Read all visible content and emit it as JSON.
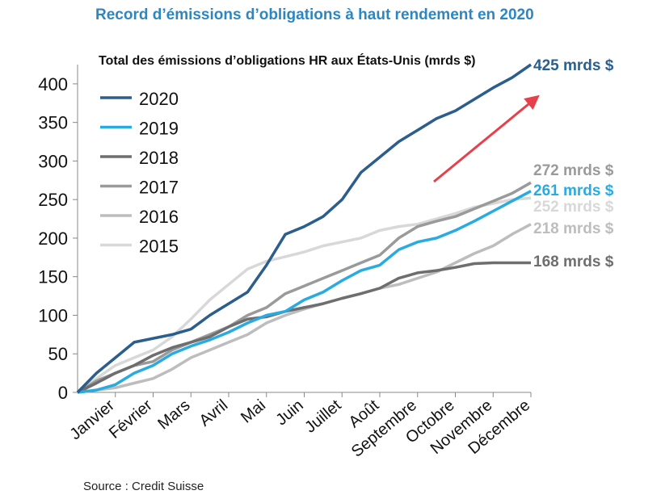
{
  "title": "Record d’émissions d’obligations à haut rendement en 2020",
  "source": "Source : Credit Suisse",
  "chart_data": {
    "type": "line",
    "title": "Record d’émissions d’obligations à haut rendement en 2020",
    "subtitle": "Total des émissions d’obligations HR aux États-Unis (mrds  $)",
    "xlabel": "",
    "ylabel": "",
    "ylim": [
      0,
      425
    ],
    "yticks": [
      0,
      50,
      100,
      150,
      200,
      250,
      300,
      350,
      400
    ],
    "categories": [
      "Janvier",
      "Février",
      "Mars",
      "Avril",
      "Mai",
      "Juin",
      "Juillet",
      "Août",
      "Septembre",
      "Octobre",
      "Novembre",
      "Décembre"
    ],
    "x_range": [
      0,
      12
    ],
    "arrow": "increasing trend toward 2020 end value",
    "series": [
      {
        "name": "2015",
        "color": "#d8d8d8",
        "end_label": "252 mrds $",
        "x": [
          0,
          0.5,
          1,
          1.5,
          2,
          2.5,
          3,
          3.5,
          4,
          4.5,
          5,
          5.5,
          6,
          6.5,
          7,
          7.5,
          8,
          8.5,
          9,
          9.5,
          10,
          10.5,
          11,
          11.5,
          12
        ],
        "values": [
          0,
          18,
          35,
          45,
          55,
          72,
          95,
          120,
          140,
          160,
          170,
          176,
          182,
          190,
          195,
          200,
          210,
          215,
          218,
          225,
          232,
          240,
          245,
          250,
          252
        ]
      },
      {
        "name": "2016",
        "color": "#bdbdbd",
        "end_label": "218 mrds $",
        "x": [
          0,
          0.5,
          1,
          1.5,
          2,
          2.5,
          3,
          3.5,
          4,
          4.5,
          5,
          5.5,
          6,
          6.5,
          7,
          7.5,
          8,
          8.5,
          9,
          9.5,
          10,
          10.5,
          11,
          11.5,
          12
        ],
        "values": [
          0,
          3,
          6,
          12,
          18,
          30,
          45,
          55,
          65,
          75,
          90,
          100,
          108,
          115,
          122,
          128,
          135,
          140,
          148,
          156,
          168,
          180,
          190,
          205,
          218
        ]
      },
      {
        "name": "2017",
        "color": "#9a9a9a",
        "end_label": "272 mrds $",
        "x": [
          0,
          0.5,
          1,
          1.5,
          2,
          2.5,
          3,
          3.5,
          4,
          4.5,
          5,
          5.5,
          6,
          6.5,
          7,
          7.5,
          8,
          8.5,
          9,
          9.5,
          10,
          10.5,
          11,
          11.5,
          12
        ],
        "values": [
          0,
          15,
          25,
          35,
          40,
          55,
          65,
          75,
          85,
          100,
          110,
          128,
          138,
          148,
          158,
          168,
          178,
          200,
          215,
          222,
          228,
          238,
          248,
          258,
          272
        ]
      },
      {
        "name": "2018",
        "color": "#6e6e6e",
        "end_label": "168 mrds $",
        "x": [
          0,
          0.5,
          1,
          1.5,
          2,
          2.5,
          3,
          3.5,
          4,
          4.5,
          5,
          5.5,
          6,
          6.5,
          7,
          7.5,
          8,
          8.5,
          9,
          9.5,
          10,
          10.5,
          11,
          11.5,
          12
        ],
        "values": [
          0,
          12,
          25,
          35,
          48,
          58,
          65,
          72,
          85,
          95,
          98,
          105,
          110,
          115,
          122,
          128,
          135,
          148,
          155,
          158,
          162,
          167,
          168,
          168,
          168
        ]
      },
      {
        "name": "2019",
        "color": "#29abe2",
        "end_label": "261 mrds $",
        "x": [
          0,
          0.5,
          1,
          1.5,
          2,
          2.5,
          3,
          3.5,
          4,
          4.5,
          5,
          5.5,
          6,
          6.5,
          7,
          7.5,
          8,
          8.5,
          9,
          9.5,
          10,
          10.5,
          11,
          11.5,
          12
        ],
        "values": [
          0,
          3,
          10,
          25,
          35,
          50,
          60,
          68,
          78,
          90,
          100,
          105,
          120,
          130,
          145,
          158,
          165,
          185,
          195,
          200,
          210,
          222,
          235,
          248,
          261
        ]
      },
      {
        "name": "2020",
        "color": "#2b5e8c",
        "end_label": "425 mrds $",
        "x": [
          0,
          0.5,
          1,
          1.5,
          2,
          2.5,
          3,
          3.5,
          4,
          4.5,
          5,
          5.5,
          6,
          6.5,
          7,
          7.5,
          8,
          8.5,
          9,
          9.5,
          10,
          10.5,
          11,
          11.5,
          12
        ],
        "values": [
          0,
          25,
          45,
          65,
          70,
          75,
          82,
          100,
          115,
          130,
          165,
          205,
          215,
          228,
          250,
          285,
          305,
          325,
          340,
          355,
          365,
          380,
          395,
          408,
          425
        ]
      }
    ],
    "legend_order": [
      "2020",
      "2019",
      "2018",
      "2017",
      "2016",
      "2015"
    ]
  }
}
